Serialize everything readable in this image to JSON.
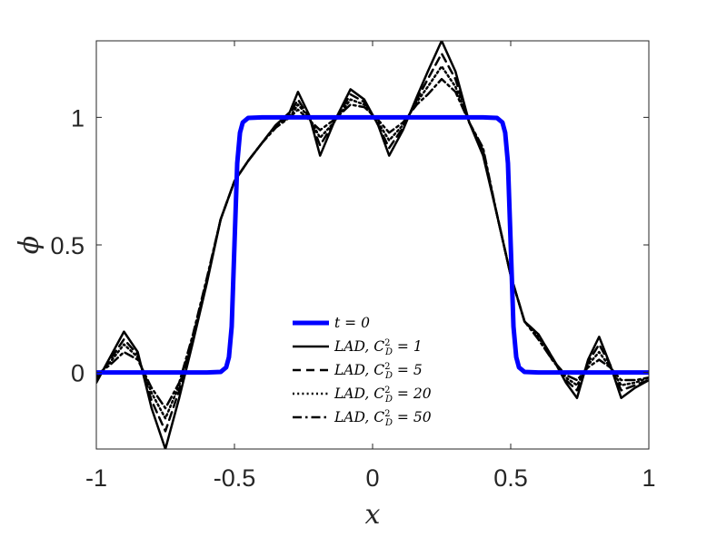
{
  "chart_data": {
    "type": "line",
    "xlabel": "x",
    "ylabel": "ϕ",
    "xlim": [
      -1,
      1
    ],
    "ylim": [
      -0.3,
      1.3
    ],
    "xticks": [
      -1,
      -0.5,
      0,
      0.5,
      1
    ],
    "xtick_labels": [
      "-1",
      "-0.5",
      "0",
      "0.5",
      "1"
    ],
    "yticks": [
      0,
      0.5,
      1
    ],
    "ytick_labels": [
      "0",
      "0.5",
      "1"
    ],
    "grid": false,
    "legend_position": "bottom-center",
    "series": [
      {
        "name": "t = 0",
        "color": "#0000ff",
        "dash": "solid",
        "width": 5,
        "x": [
          -1,
          -0.6,
          -0.55,
          -0.53,
          -0.52,
          -0.51,
          -0.5,
          -0.49,
          -0.48,
          -0.47,
          -0.45,
          -0.4,
          0.4,
          0.45,
          0.47,
          0.48,
          0.49,
          0.5,
          0.51,
          0.52,
          0.53,
          0.55,
          0.6,
          1
        ],
        "y": [
          0,
          0,
          0.002,
          0.02,
          0.06,
          0.18,
          0.5,
          0.82,
          0.94,
          0.98,
          0.998,
          1,
          1,
          0.998,
          0.98,
          0.94,
          0.82,
          0.5,
          0.18,
          0.06,
          0.02,
          0.002,
          0,
          0
        ]
      },
      {
        "name": "LAD, C_D^2 = 1",
        "color": "#000000",
        "dash": "solid",
        "width": 2.5,
        "x": [
          -1,
          -0.95,
          -0.9,
          -0.85,
          -0.8,
          -0.75,
          -0.7,
          -0.65,
          -0.6,
          -0.55,
          -0.5,
          -0.45,
          -0.4,
          -0.35,
          -0.3,
          -0.27,
          -0.23,
          -0.19,
          -0.14,
          -0.08,
          -0.03,
          0.02,
          0.06,
          0.11,
          0.16,
          0.2,
          0.25,
          0.3,
          0.35,
          0.4,
          0.45,
          0.5,
          0.55,
          0.6,
          0.65,
          0.7,
          0.74,
          0.78,
          0.82,
          0.86,
          0.9,
          0.95,
          1
        ],
        "y": [
          -0.04,
          0.06,
          0.16,
          0.08,
          -0.14,
          -0.3,
          -0.1,
          0.12,
          0.35,
          0.6,
          0.75,
          0.83,
          0.9,
          0.97,
          1.02,
          1.1,
          1.01,
          0.85,
          0.98,
          1.11,
          1.07,
          0.97,
          0.85,
          0.95,
          1.08,
          1.18,
          1.3,
          1.18,
          0.98,
          0.85,
          0.62,
          0.38,
          0.2,
          0.15,
          0.06,
          -0.04,
          -0.1,
          0.05,
          0.14,
          0.03,
          -0.1,
          -0.06,
          -0.03
        ]
      },
      {
        "name": "LAD, C_D^2 = 5",
        "color": "#000000",
        "dash": "dashed",
        "width": 2.5,
        "x": [
          -1,
          -0.95,
          -0.9,
          -0.85,
          -0.8,
          -0.75,
          -0.7,
          -0.65,
          -0.6,
          -0.55,
          -0.5,
          -0.45,
          -0.4,
          -0.35,
          -0.3,
          -0.27,
          -0.23,
          -0.19,
          -0.14,
          -0.08,
          -0.03,
          0.02,
          0.06,
          0.11,
          0.16,
          0.2,
          0.25,
          0.3,
          0.35,
          0.4,
          0.45,
          0.5,
          0.55,
          0.6,
          0.65,
          0.7,
          0.74,
          0.78,
          0.82,
          0.86,
          0.9,
          0.95,
          1
        ],
        "y": [
          -0.03,
          0.05,
          0.13,
          0.07,
          -0.11,
          -0.23,
          -0.07,
          0.13,
          0.36,
          0.6,
          0.75,
          0.83,
          0.9,
          0.97,
          1.01,
          1.07,
          1.0,
          0.89,
          0.98,
          1.09,
          1.06,
          0.97,
          0.88,
          0.96,
          1.07,
          1.15,
          1.25,
          1.15,
          0.98,
          0.86,
          0.62,
          0.38,
          0.2,
          0.15,
          0.06,
          -0.03,
          -0.07,
          0.04,
          0.11,
          0.03,
          -0.07,
          -0.05,
          -0.03
        ]
      },
      {
        "name": "LAD, C_D^2 = 20",
        "color": "#000000",
        "dash": "dotted",
        "width": 2.5,
        "x": [
          -1,
          -0.95,
          -0.9,
          -0.85,
          -0.8,
          -0.75,
          -0.7,
          -0.65,
          -0.6,
          -0.55,
          -0.5,
          -0.45,
          -0.4,
          -0.35,
          -0.3,
          -0.27,
          -0.23,
          -0.19,
          -0.14,
          -0.08,
          -0.03,
          0.02,
          0.06,
          0.11,
          0.16,
          0.2,
          0.25,
          0.3,
          0.35,
          0.4,
          0.45,
          0.5,
          0.55,
          0.6,
          0.65,
          0.7,
          0.74,
          0.78,
          0.82,
          0.86,
          0.9,
          0.95,
          1
        ],
        "y": [
          -0.02,
          0.04,
          0.11,
          0.06,
          -0.08,
          -0.18,
          -0.05,
          0.14,
          0.36,
          0.6,
          0.75,
          0.83,
          0.9,
          0.97,
          1.0,
          1.05,
          1.0,
          0.92,
          0.98,
          1.07,
          1.05,
          0.98,
          0.91,
          0.97,
          1.06,
          1.12,
          1.2,
          1.12,
          0.98,
          0.87,
          0.62,
          0.38,
          0.2,
          0.14,
          0.05,
          -0.02,
          -0.05,
          0.03,
          0.08,
          0.02,
          -0.05,
          -0.04,
          -0.02
        ]
      },
      {
        "name": "LAD, C_D^2 = 50",
        "color": "#000000",
        "dash": "dashdot",
        "width": 2.5,
        "x": [
          -1,
          -0.95,
          -0.9,
          -0.85,
          -0.8,
          -0.75,
          -0.7,
          -0.65,
          -0.6,
          -0.55,
          -0.5,
          -0.45,
          -0.4,
          -0.35,
          -0.3,
          -0.27,
          -0.23,
          -0.19,
          -0.14,
          -0.08,
          -0.03,
          0.02,
          0.06,
          0.11,
          0.16,
          0.2,
          0.25,
          0.3,
          0.35,
          0.4,
          0.45,
          0.5,
          0.55,
          0.6,
          0.65,
          0.7,
          0.74,
          0.78,
          0.82,
          0.86,
          0.9,
          0.95,
          1
        ],
        "y": [
          -0.01,
          0.03,
          0.08,
          0.05,
          -0.06,
          -0.14,
          -0.04,
          0.15,
          0.37,
          0.6,
          0.75,
          0.83,
          0.9,
          0.96,
          1.0,
          1.03,
          0.99,
          0.95,
          0.99,
          1.05,
          1.04,
          0.99,
          0.94,
          0.98,
          1.05,
          1.09,
          1.15,
          1.1,
          0.98,
          0.88,
          0.62,
          0.38,
          0.2,
          0.13,
          0.05,
          -0.01,
          -0.03,
          0.02,
          0.05,
          0.02,
          -0.03,
          -0.03,
          -0.02
        ]
      }
    ]
  }
}
